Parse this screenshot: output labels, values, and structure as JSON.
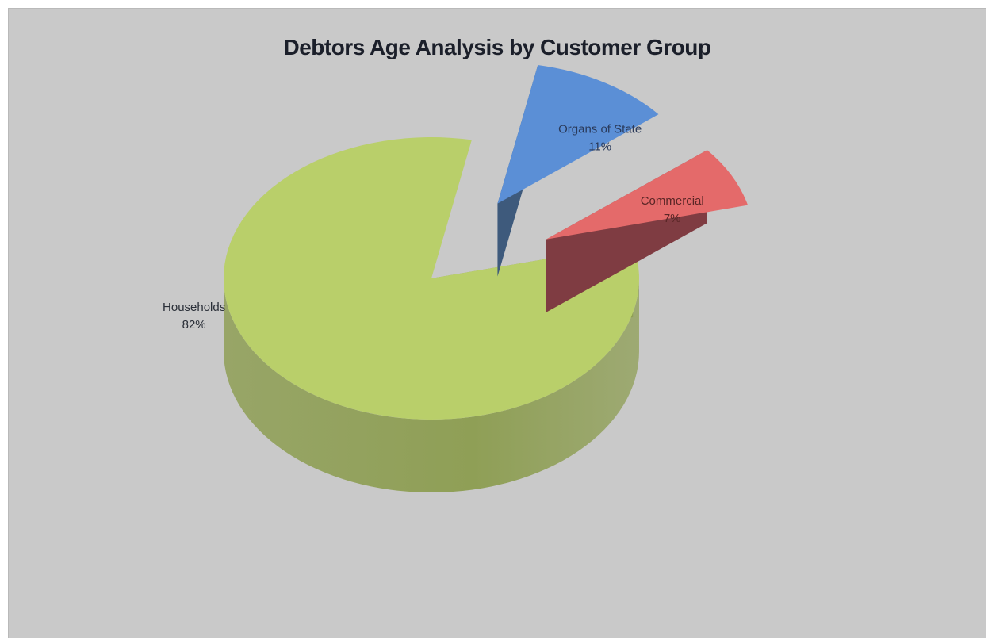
{
  "chart_data": {
    "type": "pie",
    "title": "Debtors Age Analysis by Customer Group",
    "slices": [
      {
        "label": "Households",
        "value": 82,
        "value_label": "82%",
        "color": "#b9cf6a",
        "side_color": "#8f9f56",
        "label_color": "#2a2f38"
      },
      {
        "label": "Organs of State",
        "value": 11,
        "value_label": "11%",
        "color": "#5b8fd6",
        "side_color": "#3e5a7c",
        "label_color": "#2a3a5a"
      },
      {
        "label": "Commercial",
        "value": 7,
        "value_label": "7%",
        "color": "#e46a6a",
        "side_color": "#7f3c42",
        "label_color": "#5a2626"
      }
    ],
    "style": "3d-exploded"
  }
}
